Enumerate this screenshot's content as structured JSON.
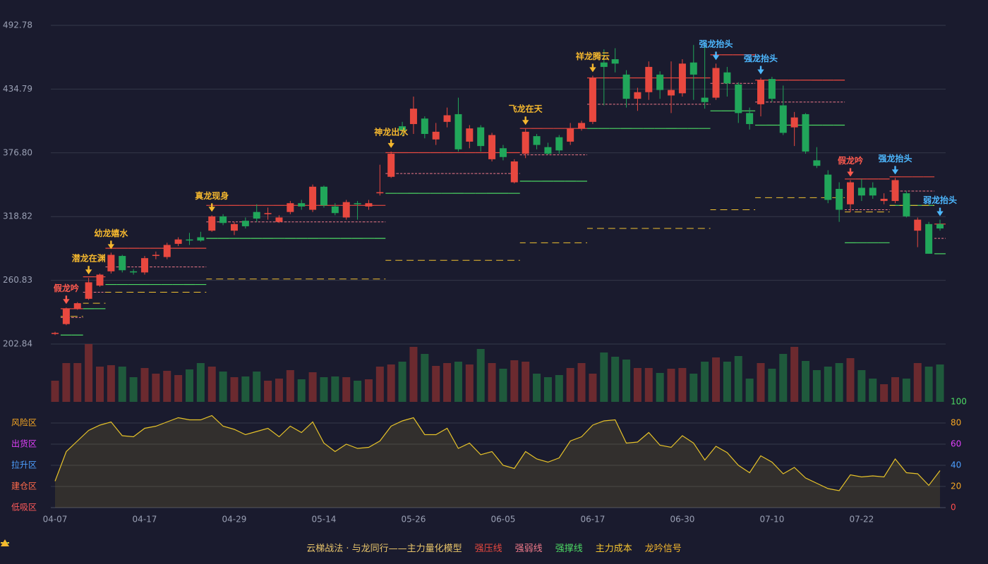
{
  "chart_data": {
    "type": "candlestick",
    "title": "云梯战法 · 与龙同行——主力量化模型",
    "categories": [
      "04-07",
      null,
      null,
      null,
      null,
      null,
      null,
      null,
      "04-17",
      null,
      null,
      null,
      null,
      null,
      null,
      null,
      "04-29",
      null,
      null,
      null,
      null,
      null,
      null,
      null,
      "05-14",
      null,
      null,
      null,
      null,
      null,
      null,
      null,
      "05-26",
      null,
      null,
      null,
      null,
      null,
      null,
      null,
      "06-05",
      null,
      null,
      null,
      null,
      null,
      null,
      null,
      "06-17",
      null,
      null,
      null,
      null,
      null,
      null,
      null,
      "06-30",
      null,
      null,
      null,
      null,
      null,
      null,
      null,
      "07-10",
      null,
      null,
      null,
      null,
      null,
      null,
      null,
      "07-22",
      null,
      null,
      null,
      null,
      null,
      null,
      null
    ],
    "open": [
      212,
      221,
      235,
      244,
      256,
      269,
      283,
      269,
      268,
      283,
      282,
      294,
      298,
      300,
      306,
      319,
      306,
      315,
      323,
      321,
      314,
      323,
      331,
      325,
      346,
      328,
      318,
      331,
      328,
      340,
      355,
      401,
      403,
      408,
      389,
      405,
      412,
      387,
      400,
      371,
      381,
      350,
      376,
      392,
      382,
      391,
      387,
      399,
      405,
      459,
      462,
      448,
      426,
      432,
      448,
      429,
      431,
      459,
      427,
      427,
      450,
      439,
      413,
      421,
      444,
      420,
      400,
      412,
      370,
      357,
      344,
      330,
      345,
      345,
      333,
      333,
      340,
      306,
      312,
      312
    ],
    "high": [
      214,
      236,
      241,
      263,
      267,
      286,
      284,
      271,
      283,
      287,
      295,
      300,
      304,
      305,
      320,
      321,
      314,
      318,
      330,
      327,
      320,
      333,
      334,
      348,
      347,
      331,
      334,
      333,
      334,
      366,
      378,
      405,
      428,
      410,
      404,
      418,
      427,
      402,
      402,
      395,
      384,
      371,
      399,
      394,
      386,
      393,
      404,
      406,
      447,
      471,
      472,
      452,
      436,
      460,
      451,
      460,
      462,
      475,
      478,
      458,
      455,
      441,
      418,
      445,
      446,
      438,
      414,
      413,
      382,
      361,
      350,
      352,
      353,
      350,
      340,
      354,
      342,
      318,
      314,
      316
    ],
    "low": [
      211,
      220,
      234,
      243,
      255,
      267,
      268,
      266,
      266,
      280,
      280,
      292,
      293,
      296,
      305,
      311,
      302,
      308,
      314,
      316,
      313,
      321,
      325,
      323,
      327,
      320,
      316,
      316,
      325,
      338,
      354,
      393,
      394,
      390,
      384,
      400,
      378,
      381,
      378,
      369,
      370,
      349,
      372,
      380,
      375,
      376,
      384,
      397,
      403,
      420,
      450,
      418,
      415,
      425,
      426,
      413,
      428,
      425,
      417,
      425,
      428,
      404,
      398,
      410,
      423,
      393,
      383,
      376,
      363,
      331,
      314,
      323,
      333,
      335,
      330,
      331,
      318,
      291,
      285,
      306
    ],
    "close": [
      213,
      235,
      240,
      259,
      266,
      284,
      270,
      268,
      281,
      284,
      293,
      298,
      297,
      297,
      319,
      313,
      312,
      310,
      317,
      322,
      318,
      331,
      328,
      346,
      329,
      322,
      332,
      330,
      331,
      341,
      376,
      397,
      417,
      394,
      396,
      411,
      380,
      399,
      383,
      393,
      373,
      369,
      396,
      384,
      376,
      379,
      399,
      404,
      445,
      455,
      458,
      426,
      432,
      455,
      434,
      434,
      458,
      448,
      423,
      454,
      440,
      413,
      403,
      443,
      426,
      395,
      409,
      378,
      365,
      334,
      325,
      350,
      338,
      338,
      335,
      352,
      319,
      316,
      285,
      308
    ],
    "up_color": "#e8483f",
    "down_color": "#21a65a",
    "ylim": [
      202.84,
      492.78
    ],
    "yticks": [
      202.84,
      260.83,
      318.82,
      {
        "value": 376.8,
        "label": "376.80"
      },
      434.79,
      492.78
    ],
    "grid": true,
    "volume": [
      30,
      55,
      55,
      82,
      50,
      52,
      50,
      35,
      48,
      40,
      44,
      38,
      46,
      55,
      50,
      43,
      35,
      36,
      43,
      30,
      33,
      45,
      32,
      42,
      35,
      36,
      35,
      30,
      32,
      50,
      53,
      57,
      78,
      68,
      51,
      55,
      57,
      53,
      75,
      55,
      47,
      59,
      57,
      40,
      35,
      38,
      48,
      55,
      40,
      70,
      64,
      60,
      48,
      48,
      41,
      47,
      48,
      40,
      57,
      63,
      57,
      65,
      33,
      55,
      47,
      68,
      78,
      58,
      45,
      50,
      55,
      62,
      45,
      33,
      25,
      35,
      33,
      55,
      50,
      53
    ],
    "volume_up_color": "#6b2a2f",
    "volume_down_color": "#1f5a3c",
    "levels": [
      {
        "name": "强压线",
        "color": "#e8483f",
        "dash": false,
        "values": [
          null,
          235,
          235,
          264,
          264,
          290,
          290,
          290,
          290,
          290,
          290,
          290,
          290,
          290,
          329,
          329,
          329,
          329,
          329,
          329,
          329,
          329,
          329,
          329,
          329,
          329,
          329,
          329,
          329,
          329,
          377,
          377,
          377,
          377,
          377,
          377,
          377,
          377,
          377,
          377,
          377,
          377,
          399,
          399,
          399,
          399,
          399,
          399,
          445,
          445,
          445,
          445,
          445,
          445,
          445,
          445,
          445,
          445,
          445,
          466,
          466,
          466,
          466,
          443,
          443,
          443,
          443,
          443,
          443,
          443,
          443,
          353,
          353,
          353,
          353,
          355,
          355,
          355,
          355,
          312
        ]
      },
      {
        "name": "强弱线",
        "color": "#f07a8a",
        "dash": true,
        "values": [
          null,
          227,
          227,
          250,
          250,
          273,
          273,
          273,
          273,
          273,
          273,
          273,
          273,
          273,
          314,
          314,
          314,
          314,
          314,
          314,
          314,
          314,
          314,
          314,
          314,
          314,
          314,
          314,
          314,
          314,
          358,
          358,
          358,
          358,
          358,
          358,
          358,
          358,
          358,
          358,
          358,
          358,
          375,
          375,
          375,
          375,
          375,
          375,
          421,
          421,
          421,
          421,
          421,
          421,
          421,
          421,
          421,
          421,
          421,
          440,
          440,
          440,
          440,
          423,
          423,
          423,
          423,
          423,
          423,
          423,
          423,
          325,
          325,
          325,
          325,
          342,
          342,
          342,
          342,
          299
        ]
      },
      {
        "name": "强撑线",
        "color": "#4cd964",
        "dash": false,
        "values": [
          null,
          211,
          211,
          235,
          235,
          257,
          257,
          257,
          257,
          257,
          257,
          257,
          257,
          257,
          299,
          299,
          299,
          299,
          299,
          299,
          299,
          299,
          299,
          299,
          299,
          299,
          299,
          299,
          299,
          299,
          340,
          340,
          340,
          340,
          340,
          340,
          340,
          340,
          340,
          340,
          340,
          340,
          351,
          351,
          351,
          351,
          351,
          351,
          399,
          399,
          399,
          399,
          399,
          399,
          399,
          399,
          399,
          399,
          399,
          415,
          415,
          415,
          415,
          402,
          402,
          402,
          402,
          402,
          402,
          402,
          402,
          295,
          295,
          295,
          295,
          329,
          329,
          329,
          329,
          285
        ]
      },
      {
        "name": "主力成本",
        "color": "#f2c230",
        "dash": true,
        "values": [
          null,
          228,
          228,
          240,
          240,
          250,
          250,
          250,
          250,
          250,
          250,
          250,
          250,
          250,
          262,
          262,
          262,
          262,
          262,
          262,
          262,
          262,
          262,
          262,
          262,
          262,
          262,
          262,
          262,
          262,
          279,
          279,
          279,
          279,
          279,
          279,
          279,
          279,
          279,
          279,
          279,
          279,
          295,
          295,
          295,
          295,
          295,
          295,
          308,
          308,
          308,
          308,
          308,
          308,
          308,
          308,
          308,
          308,
          308,
          325,
          325,
          325,
          325,
          336,
          336,
          336,
          336,
          336,
          336,
          336,
          336,
          323,
          323,
          323,
          323,
          329,
          329,
          329,
          329,
          null
        ]
      }
    ],
    "signal_legend": {
      "name": "龙吟信号",
      "color": "#f5b82e"
    },
    "signals": [
      null,
      {
        "label": "假龙吟",
        "color": "#ff5a4e"
      },
      null,
      {
        "label": "潜龙在渊",
        "color": "#f5b82e"
      },
      null,
      {
        "label": "幼龙嬉水",
        "color": "#f5b82e"
      },
      null,
      null,
      null,
      null,
      null,
      null,
      null,
      null,
      {
        "label": "真龙现身",
        "color": "#f5b82e"
      },
      null,
      null,
      null,
      null,
      null,
      null,
      null,
      null,
      null,
      null,
      null,
      null,
      null,
      null,
      null,
      {
        "label": "神龙出水",
        "color": "#f5b82e"
      },
      null,
      null,
      null,
      null,
      null,
      null,
      null,
      null,
      null,
      null,
      null,
      {
        "label": "飞龙在天",
        "color": "#f5b82e"
      },
      null,
      null,
      null,
      null,
      null,
      {
        "label": "祥龙腾云",
        "color": "#f5b82e"
      },
      null,
      null,
      null,
      null,
      null,
      null,
      null,
      null,
      null,
      null,
      {
        "label": "强龙抬头",
        "color": "#4db8ff"
      },
      null,
      null,
      null,
      {
        "label": "强龙抬头",
        "color": "#4db8ff"
      },
      null,
      null,
      null,
      null,
      null,
      null,
      null,
      {
        "label": "假龙吟",
        "color": "#ff5a4e"
      },
      null,
      null,
      null,
      {
        "label": "强龙抬头",
        "color": "#4db8ff"
      },
      null,
      null,
      null,
      {
        "label": "弱龙抬头",
        "color": "#4db8ff"
      }
    ],
    "oscillator": {
      "values": [
        25,
        53,
        63,
        73,
        78,
        81,
        68,
        67,
        75,
        77,
        81,
        85,
        83,
        83,
        87,
        77,
        74,
        69,
        72,
        75,
        67,
        77,
        71,
        81,
        61,
        53,
        60,
        56,
        57,
        63,
        77,
        82,
        85,
        69,
        69,
        75,
        56,
        61,
        50,
        53,
        40,
        37,
        53,
        46,
        43,
        47,
        63,
        67,
        78,
        82,
        83,
        61,
        62,
        71,
        59,
        57,
        68,
        61,
        45,
        58,
        52,
        40,
        33,
        49,
        43,
        32,
        38,
        28,
        23,
        18,
        16,
        31,
        29,
        30,
        29,
        46,
        33,
        32,
        21,
        35
      ],
      "color": "#e6c229",
      "fill": "rgba(230,194,41,0.12)",
      "ylim": [
        0,
        100
      ],
      "yticks": [
        0,
        20,
        40,
        60,
        80,
        100
      ],
      "ytick_colors": [
        "#ff4d4d",
        "#f5a623",
        "#4d9fff",
        "#e040fb",
        "#f5a623",
        "#4cd964"
      ],
      "zones": [
        {
          "value": 0,
          "label": "低吸区",
          "color": "#ff5a5a"
        },
        {
          "value": 20,
          "label": "建仓区",
          "color": "#ff6a4a"
        },
        {
          "value": 40,
          "label": "拉升区",
          "color": "#4d9fff"
        },
        {
          "value": 60,
          "label": "出货区",
          "color": "#e040fb"
        },
        {
          "value": 80,
          "label": "风险区",
          "color": "#f5a623"
        }
      ]
    }
  }
}
